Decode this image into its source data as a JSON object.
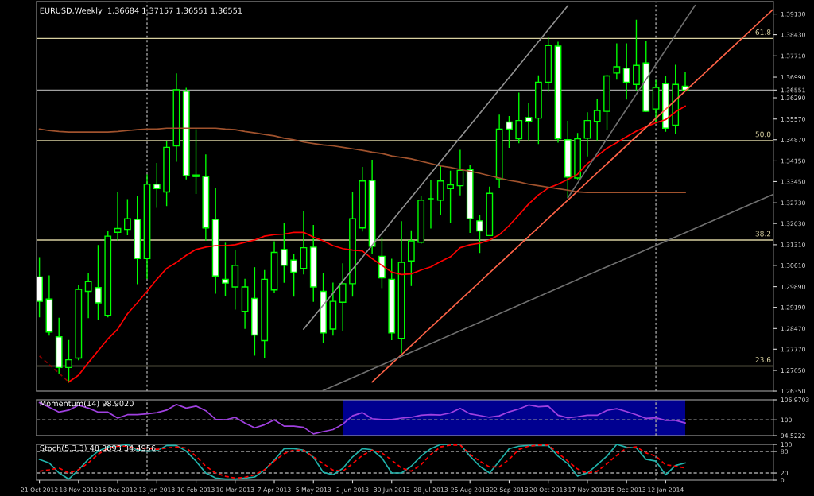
{
  "chart_data": [
    {
      "type": "candlestick",
      "title": "EURUSD,Weekly  1.36684 1.37157 1.36551 1.36551",
      "color": "#00ff00",
      "tick_labels": "y",
      "legend": false,
      "grid": false,
      "x": [
        "2012-10-21",
        "2012-10-28",
        "2012-11-04",
        "2012-11-11",
        "2012-11-18",
        "2012-11-25",
        "2012-12-02",
        "2012-12-09",
        "2012-12-16",
        "2012-12-23",
        "2012-12-30",
        "2013-01-06",
        "2013-01-13",
        "2013-01-20",
        "2013-01-27",
        "2013-02-03",
        "2013-02-10",
        "2013-02-17",
        "2013-02-24",
        "2013-03-03",
        "2013-03-10",
        "2013-03-17",
        "2013-03-24",
        "2013-03-31",
        "2013-04-07",
        "2013-04-14",
        "2013-04-21",
        "2013-04-28",
        "2013-05-05",
        "2013-05-12",
        "2013-05-19",
        "2013-05-26",
        "2013-06-02",
        "2013-06-09",
        "2013-06-16",
        "2013-06-23",
        "2013-06-30",
        "2013-07-07",
        "2013-07-14",
        "2013-07-21",
        "2013-07-28",
        "2013-08-04",
        "2013-08-11",
        "2013-08-18",
        "2013-08-25",
        "2013-09-01",
        "2013-09-08",
        "2013-09-15",
        "2013-09-22",
        "2013-09-29",
        "2013-10-06",
        "2013-10-13",
        "2013-10-20",
        "2013-10-27",
        "2013-11-03",
        "2013-11-10",
        "2013-11-17",
        "2013-11-24",
        "2013-12-01",
        "2013-12-08",
        "2013-12-15",
        "2013-12-22",
        "2013-12-29",
        "2014-01-05",
        "2014-01-12",
        "2014-01-19",
        "2014-01-26"
      ],
      "ohlc": [
        [
          1.3022,
          1.3087,
          1.2887,
          1.2939
        ],
        [
          1.2947,
          1.3025,
          1.2825,
          1.2835
        ],
        [
          1.2819,
          1.2882,
          1.2695,
          1.2715
        ],
        [
          1.2715,
          1.2806,
          1.2666,
          1.2741
        ],
        [
          1.2747,
          1.2993,
          1.2741,
          1.298
        ],
        [
          1.2973,
          1.3032,
          1.2884,
          1.3006
        ],
        [
          1.2986,
          1.3128,
          1.2879,
          1.2934
        ],
        [
          1.2892,
          1.3175,
          1.2887,
          1.316
        ],
        [
          1.3173,
          1.3308,
          1.3147,
          1.3186
        ],
        [
          1.3183,
          1.3284,
          1.3165,
          1.3219
        ],
        [
          1.3217,
          1.3295,
          1.2999,
          1.3084
        ],
        [
          1.3084,
          1.3367,
          1.3017,
          1.3336
        ],
        [
          1.3336,
          1.3406,
          1.3258,
          1.3321
        ],
        [
          1.331,
          1.3479,
          1.3264,
          1.3461
        ],
        [
          1.3466,
          1.371,
          1.3414,
          1.3656
        ],
        [
          1.3651,
          1.3661,
          1.3354,
          1.3365
        ],
        [
          1.3367,
          1.3521,
          1.3305,
          1.3362
        ],
        [
          1.3362,
          1.3435,
          1.3147,
          1.3188
        ],
        [
          1.3217,
          1.3321,
          1.2967,
          1.3025
        ],
        [
          1.3014,
          1.3136,
          1.296,
          1.3001
        ],
        [
          1.2988,
          1.311,
          1.2913,
          1.3061
        ],
        [
          1.2905,
          1.3014,
          1.2848,
          1.2988
        ],
        [
          1.2949,
          1.3053,
          1.2757,
          1.2825
        ],
        [
          1.2806,
          1.3043,
          1.2749,
          1.3014
        ],
        [
          1.2978,
          1.3141,
          1.297,
          1.3105
        ],
        [
          1.3115,
          1.3204,
          1.3004,
          1.3061
        ],
        [
          1.3079,
          1.3097,
          1.2957,
          1.3038
        ],
        [
          1.3051,
          1.3243,
          1.3032,
          1.3121
        ],
        [
          1.3123,
          1.3196,
          1.2939,
          1.2988
        ],
        [
          1.2973,
          1.3032,
          1.2799,
          1.2832
        ],
        [
          1.2845,
          1.3001,
          1.2825,
          1.2939
        ],
        [
          1.2936,
          1.3066,
          1.284,
          1.2999
        ],
        [
          1.2999,
          1.3308,
          1.2957,
          1.3219
        ],
        [
          1.3188,
          1.3393,
          1.3178,
          1.3347
        ],
        [
          1.3349,
          1.3417,
          1.31,
          1.3126
        ],
        [
          1.3092,
          1.3154,
          1.2986,
          1.3019
        ],
        [
          1.3014,
          1.3082,
          1.2809,
          1.2832
        ],
        [
          1.2814,
          1.3209,
          1.2765,
          1.3071
        ],
        [
          1.3076,
          1.3178,
          1.2993,
          1.3144
        ],
        [
          1.3139,
          1.3295,
          1.3136,
          1.3282
        ],
        [
          1.3287,
          1.3347,
          1.3188,
          1.3287
        ],
        [
          1.3282,
          1.3396,
          1.3235,
          1.3347
        ],
        [
          1.3321,
          1.338,
          1.3206,
          1.3334
        ],
        [
          1.3331,
          1.3451,
          1.33,
          1.3383
        ],
        [
          1.3386,
          1.3401,
          1.3173,
          1.3219
        ],
        [
          1.3212,
          1.323,
          1.3105,
          1.3178
        ],
        [
          1.3162,
          1.3326,
          1.3162,
          1.3305
        ],
        [
          1.3354,
          1.357,
          1.3326,
          1.3523
        ],
        [
          1.3547,
          1.3565,
          1.3461,
          1.3523
        ],
        [
          1.349,
          1.3645,
          1.3477,
          1.3552
        ],
        [
          1.3562,
          1.3609,
          1.3487,
          1.3549
        ],
        [
          1.356,
          1.3703,
          1.3474,
          1.3682
        ],
        [
          1.3682,
          1.3832,
          1.3651,
          1.3806
        ],
        [
          1.3804,
          1.3817,
          1.3479,
          1.349
        ],
        [
          1.3487,
          1.3549,
          1.3292,
          1.336
        ],
        [
          1.3357,
          1.3508,
          1.3354,
          1.349
        ],
        [
          1.3492,
          1.3578,
          1.3432,
          1.3552
        ],
        [
          1.3549,
          1.3622,
          1.3487,
          1.3586
        ],
        [
          1.3583,
          1.3705,
          1.3523,
          1.3703
        ],
        [
          1.3713,
          1.3812,
          1.3692,
          1.3734
        ],
        [
          1.3729,
          1.3812,
          1.3625,
          1.3682
        ],
        [
          1.3674,
          1.3892,
          1.3656,
          1.3739
        ],
        [
          1.3747,
          1.382,
          1.3583,
          1.3583
        ],
        [
          1.3591,
          1.3687,
          1.3544,
          1.3664
        ],
        [
          1.3677,
          1.37,
          1.3516,
          1.3526
        ],
        [
          1.3536,
          1.3739,
          1.3508,
          1.3674
        ],
        [
          1.36684,
          1.37157,
          1.36551,
          1.36551
        ]
      ],
      "series": [
        {
          "type": "line",
          "color": "#ff0000",
          "values": [
            null,
            null,
            null,
            1.2666,
            1.2689,
            1.2731,
            1.2772,
            1.2812,
            1.2845,
            1.2897,
            1.2934,
            1.2973,
            1.3014,
            1.3051,
            1.3071,
            1.3095,
            1.3115,
            1.3123,
            1.3128,
            1.3128,
            1.3131,
            1.3139,
            1.3147,
            1.316,
            1.3165,
            1.3167,
            1.3173,
            1.3173,
            1.3157,
            1.3144,
            1.3128,
            1.3118,
            1.3113,
            1.311,
            1.3084,
            1.3061,
            1.3038,
            1.303,
            1.3032,
            1.3045,
            1.3056,
            1.3074,
            1.309,
            1.3121,
            1.3131,
            1.3136,
            1.3147,
            1.3165,
            1.3196,
            1.3232,
            1.3269,
            1.33,
            1.3323,
            1.3336,
            1.3352,
            1.337,
            1.3406,
            1.3432,
            1.3458,
            1.3477,
            1.3497,
            1.3516,
            1.3531,
            1.3544,
            1.3555,
            1.3581,
            1.3601
          ]
        },
        {
          "type": "line",
          "color": "#a0522d",
          "values": [
            1.3523,
            1.3518,
            1.3515,
            1.3513,
            1.3513,
            1.3513,
            1.3513,
            1.3513,
            1.3515,
            1.3518,
            1.3521,
            1.3523,
            1.3523,
            1.3526,
            1.3526,
            1.3526,
            1.3526,
            1.3526,
            1.3526,
            1.3523,
            1.3521,
            1.3515,
            1.351,
            1.3505,
            1.35,
            1.3492,
            1.3487,
            1.3479,
            1.3474,
            1.3469,
            1.3466,
            1.3461,
            1.3456,
            1.3451,
            1.3445,
            1.344,
            1.3432,
            1.3427,
            1.3422,
            1.3414,
            1.3406,
            1.3398,
            1.3393,
            1.3386,
            1.338,
            1.3373,
            1.3365,
            1.3357,
            1.3349,
            1.3344,
            1.3336,
            1.3331,
            1.3326,
            1.3321,
            1.3316,
            1.331,
            1.3308,
            1.3308,
            1.3308,
            1.3308,
            1.3308,
            1.3308,
            1.3308,
            1.3308,
            1.3308,
            1.3308,
            1.3308
          ]
        },
        {
          "type": "line",
          "color": "#ff6347",
          "x": [
            "2013-06-16",
            "2014-03-30"
          ],
          "values": [
            1.2666,
            1.3929
          ]
        },
        {
          "type": "line",
          "color": "#909090",
          "x": [
            "2013-04-28",
            "2013-11-03"
          ],
          "values": [
            1.2845,
            1.3941
          ]
        },
        {
          "type": "line",
          "color": "#707070",
          "x": [
            "2013-11-03",
            "2014-02-02"
          ],
          "values": [
            1.329,
            1.3942
          ]
        },
        {
          "type": "line",
          "color": "#707070",
          "x": [
            "2013-05-12",
            "2014-03-30"
          ],
          "values": [
            1.2637,
            1.3302
          ]
        },
        {
          "type": "line",
          "color": "#8b0000",
          "line_style": "dashed",
          "x": [
            "2012-10-21",
            "2012-11-11"
          ],
          "values": [
            1.2754,
            1.2666
          ]
        }
      ],
      "xlim": [
        "2012-10-19",
        "2014-03-30"
      ],
      "ylim": [
        1.2635,
        1.3955
      ],
      "yticks": [
        {
          "value": 1.3913,
          "label": "1.39130"
        },
        {
          "value": 1.3843,
          "label": "1.38430"
        },
        {
          "value": 1.3771,
          "label": "1.37710"
        },
        {
          "value": 1.3699,
          "label": "1.36990"
        },
        {
          "value": 1.36551,
          "label": "1.36551"
        },
        {
          "value": 1.3629,
          "label": "1.36290"
        },
        {
          "value": 1.3557,
          "label": "1.35570"
        },
        {
          "value": 1.3487,
          "label": "1.34870"
        },
        {
          "value": 1.3415,
          "label": "1.34150"
        },
        {
          "value": 1.3345,
          "label": "1.33450"
        },
        {
          "value": 1.3273,
          "label": "1.32730"
        },
        {
          "value": 1.3203,
          "label": "1.32030"
        },
        {
          "value": 1.3131,
          "label": "1.31310"
        },
        {
          "value": 1.3061,
          "label": "1.30610"
        },
        {
          "value": 1.2989,
          "label": "1.29890"
        },
        {
          "value": 1.2919,
          "label": "1.29190"
        },
        {
          "value": 1.2847,
          "label": "1.28470"
        },
        {
          "value": 1.2777,
          "label": "1.27770"
        },
        {
          "value": 1.2705,
          "label": "1.27050"
        },
        {
          "value": 1.2635,
          "label": "1.26350"
        }
      ],
      "annotations": [
        {
          "text": "61.8",
          "x": "2014-03-30",
          "y": 1.383
        },
        {
          "text": "50.0",
          "x": "2014-03-30",
          "y": 1.3484
        },
        {
          "text": "38.2",
          "x": "2014-03-30",
          "y": 1.3147
        },
        {
          "text": "23.6",
          "x": "2014-03-30",
          "y": 1.272
        }
      ],
      "ref_lines": [
        {
          "axis": "y",
          "value": 1.383,
          "color": "#d8d0a0"
        },
        {
          "axis": "y",
          "value": 1.3484,
          "color": "#d8d0a0"
        },
        {
          "axis": "y",
          "value": 1.3147,
          "color": "#d8d0a0"
        },
        {
          "axis": "y",
          "value": 1.272,
          "color": "#a09a78"
        },
        {
          "axis": "y",
          "value": 1.36551,
          "color": "#a0a0a0"
        },
        {
          "axis": "x",
          "value": "2013-01-06",
          "color": "#a0a0a0",
          "line_style": "dotted"
        },
        {
          "axis": "x",
          "value": "2014-01-05",
          "color": "#a0a0a0",
          "line_style": "dotted"
        }
      ]
    },
    {
      "type": "line",
      "title": "Momentum(14) 98.9020",
      "color": "#a040e0",
      "tick_labels": "y",
      "legend": false,
      "grid": false,
      "x": [
        "2012-10-21",
        "2012-10-28",
        "2012-11-04",
        "2012-11-11",
        "2012-11-18",
        "2012-11-25",
        "2012-12-02",
        "2012-12-09",
        "2012-12-16",
        "2012-12-23",
        "2012-12-30",
        "2013-01-06",
        "2013-01-13",
        "2013-01-20",
        "2013-01-27",
        "2013-02-03",
        "2013-02-10",
        "2013-02-17",
        "2013-02-24",
        "2013-03-03",
        "2013-03-10",
        "2013-03-17",
        "2013-03-24",
        "2013-03-31",
        "2013-04-07",
        "2013-04-14",
        "2013-04-21",
        "2013-04-28",
        "2013-05-05",
        "2013-05-12",
        "2013-05-19",
        "2013-05-26",
        "2013-06-02",
        "2013-06-09",
        "2013-06-16",
        "2013-06-23",
        "2013-06-30",
        "2013-07-07",
        "2013-07-14",
        "2013-07-21",
        "2013-07-28",
        "2013-08-04",
        "2013-08-11",
        "2013-08-18",
        "2013-08-25",
        "2013-09-01",
        "2013-09-08",
        "2013-09-15",
        "2013-09-22",
        "2013-09-29",
        "2013-10-06",
        "2013-10-13",
        "2013-10-20",
        "2013-10-27",
        "2013-11-03",
        "2013-11-10",
        "2013-11-17",
        "2013-11-24",
        "2013-12-01",
        "2013-12-08",
        "2013-12-15",
        "2013-12-22",
        "2013-12-29",
        "2014-01-05",
        "2014-01-12",
        "2014-01-19",
        "2014-01-26"
      ],
      "values": [
        106.0,
        104.4,
        102.7,
        103.4,
        105.1,
        104.1,
        102.7,
        102.7,
        100.6,
        101.8,
        101.8,
        102.1,
        102.5,
        103.4,
        105.4,
        104.1,
        104.8,
        103.2,
        100.2,
        100.0,
        100.9,
        98.9,
        97.2,
        98.3,
        100.0,
        97.8,
        97.8,
        97.4,
        95.1,
        95.9,
        96.6,
        98.5,
        101.4,
        102.5,
        100.4,
        100.1,
        100.1,
        100.6,
        100.9,
        101.6,
        101.8,
        101.7,
        102.4,
        104.0,
        102.1,
        101.5,
        100.9,
        101.4,
        102.8,
        103.8,
        105.2,
        104.6,
        104.8,
        101.6,
        100.7,
        101.1,
        101.6,
        101.6,
        103.3,
        103.9,
        102.9,
        101.8,
        100.5,
        100.7,
        99.8,
        99.8,
        98.9
      ],
      "xlim": [
        "2012-10-19",
        "2014-03-30"
      ],
      "ylim": [
        94.5222,
        106.9703
      ],
      "yticks": [
        94.5222,
        100,
        106.9703
      ],
      "ref_lines": [
        {
          "axis": "y",
          "value": 100,
          "color": "#a0a0a0",
          "line_style": "dashed"
        },
        {
          "axis": "x",
          "value": "2013-01-06",
          "color": "#a0a0a0",
          "line_style": "dotted"
        },
        {
          "axis": "x",
          "value": "2014-01-05",
          "color": "#a0a0a0",
          "line_style": "dotted"
        }
      ],
      "bands": [
        {
          "axis": "x",
          "from": "2013-05-26",
          "to": "2014-01-26",
          "color": "#000090"
        }
      ]
    },
    {
      "type": "line",
      "title": "Stoch(5,3,3) 48.3893 34.4956",
      "legend": false,
      "grid": false,
      "x": [
        "2012-10-21",
        "2012-10-28",
        "2012-11-04",
        "2012-11-11",
        "2012-11-18",
        "2012-11-25",
        "2012-12-02",
        "2012-12-09",
        "2012-12-16",
        "2012-12-23",
        "2012-12-30",
        "2013-01-06",
        "2013-01-13",
        "2013-01-20",
        "2013-01-27",
        "2013-02-03",
        "2013-02-10",
        "2013-02-17",
        "2013-02-24",
        "2013-03-03",
        "2013-03-10",
        "2013-03-17",
        "2013-03-24",
        "2013-03-31",
        "2013-04-07",
        "2013-04-14",
        "2013-04-21",
        "2013-04-28",
        "2013-05-05",
        "2013-05-12",
        "2013-05-19",
        "2013-05-26",
        "2013-06-02",
        "2013-06-09",
        "2013-06-16",
        "2013-06-23",
        "2013-06-30",
        "2013-07-07",
        "2013-07-14",
        "2013-07-21",
        "2013-07-28",
        "2013-08-04",
        "2013-08-11",
        "2013-08-18",
        "2013-08-25",
        "2013-09-01",
        "2013-09-08",
        "2013-09-15",
        "2013-09-22",
        "2013-09-29",
        "2013-10-06",
        "2013-10-13",
        "2013-10-20",
        "2013-10-27",
        "2013-11-03",
        "2013-11-10",
        "2013-11-17",
        "2013-11-24",
        "2013-12-01",
        "2013-12-08",
        "2013-12-15",
        "2013-12-22",
        "2013-12-29",
        "2014-01-05",
        "2014-01-12",
        "2014-01-19",
        "2014-01-26"
      ],
      "series": [
        {
          "color": "#20b2aa",
          "values": [
            58,
            48,
            20,
            3,
            29,
            58,
            81,
            93,
            95,
            100,
            84,
            81,
            82,
            97,
            97,
            81,
            53,
            20,
            6,
            3,
            3,
            6,
            9,
            28,
            56,
            88,
            88,
            84,
            64,
            22,
            15,
            33,
            65,
            88,
            85,
            62,
            20,
            20,
            39,
            67,
            88,
            100,
            100,
            100,
            67,
            39,
            20,
            53,
            88,
            95,
            97,
            97,
            97,
            67,
            46,
            11,
            20,
            43,
            67,
            100,
            92,
            90,
            58,
            53,
            15,
            41,
            48
          ]
        },
        {
          "color": "#ff0000",
          "line_style": "dashed",
          "values": [
            25,
            29,
            34,
            20,
            29,
            48,
            72,
            90,
            95,
            95,
            88,
            90,
            86,
            90,
            93,
            90,
            67,
            39,
            20,
            11,
            6,
            8,
            15,
            29,
            53,
            74,
            84,
            84,
            65,
            46,
            28,
            25,
            46,
            69,
            84,
            76,
            56,
            34,
            25,
            43,
            72,
            93,
            98,
            98,
            72,
            53,
            37,
            37,
            58,
            86,
            95,
            98,
            98,
            76,
            53,
            31,
            20,
            25,
            46,
            69,
            90,
            93,
            76,
            67,
            43,
            39,
            34
          ]
        }
      ],
      "xlim": [
        "2012-10-19",
        "2014-03-30"
      ],
      "ylim": [
        0,
        100
      ],
      "yticks": [
        0,
        20,
        80,
        100
      ],
      "xticks": [
        {
          "value": "2012-10-21",
          "label": "21 Oct 2012"
        },
        {
          "value": "2012-11-18",
          "label": "18 Nov 2012"
        },
        {
          "value": "2012-12-16",
          "label": "16 Dec 2012"
        },
        {
          "value": "2013-01-13",
          "label": "13 Jan 2013"
        },
        {
          "value": "2013-02-10",
          "label": "10 Feb 2013"
        },
        {
          "value": "2013-03-10",
          "label": "10 Mar 2013"
        },
        {
          "value": "2013-04-07",
          "label": "7 Apr 2013"
        },
        {
          "value": "2013-05-05",
          "label": "5 May 2013"
        },
        {
          "value": "2013-06-02",
          "label": "2 Jun 2013"
        },
        {
          "value": "2013-06-30",
          "label": "30 Jun 2013"
        },
        {
          "value": "2013-07-28",
          "label": "28 Jul 2013"
        },
        {
          "value": "2013-08-25",
          "label": "25 Aug 2013"
        },
        {
          "value": "2013-09-22",
          "label": "22 Sep 2013"
        },
        {
          "value": "2013-10-20",
          "label": "20 Oct 2013"
        },
        {
          "value": "2013-11-17",
          "label": "17 Nov 2013"
        },
        {
          "value": "2013-12-15",
          "label": "15 Dec 2013"
        },
        {
          "value": "2014-01-12",
          "label": "12 Jan 2014"
        }
      ],
      "ref_lines": [
        {
          "axis": "y",
          "value": 20,
          "color": "#a0a0a0",
          "line_style": "dashed"
        },
        {
          "axis": "y",
          "value": 80,
          "color": "#a0a0a0",
          "line_style": "dashed"
        },
        {
          "axis": "x",
          "value": "2013-01-06",
          "color": "#a0a0a0",
          "line_style": "dotted"
        },
        {
          "axis": "x",
          "value": "2014-01-05",
          "color": "#a0a0a0",
          "line_style": "dotted"
        }
      ]
    }
  ]
}
